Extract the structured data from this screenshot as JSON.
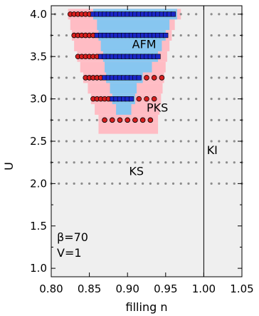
{
  "chart_data": {
    "type": "scatter",
    "xlabel": "filling n",
    "ylabel": "U",
    "xlim": [
      0.8,
      1.05
    ],
    "ylim": [
      0.9,
      4.1
    ],
    "x_ticks": [
      "0.80",
      "0.85",
      "0.90",
      "0.95",
      "1.00",
      "1.05"
    ],
    "y_ticks": [
      "1.0",
      "1.5",
      "2.0",
      "2.5",
      "3.0",
      "3.5",
      "4.0"
    ],
    "x_tick_values": [
      0.8,
      0.85,
      0.9,
      0.95,
      1.0,
      1.05
    ],
    "y_tick_values": [
      1.0,
      1.5,
      2.0,
      2.5,
      3.0,
      3.5,
      4.0
    ],
    "grid": false,
    "vertical_line_x": 1.0,
    "region_labels": [
      {
        "text": "AFM",
        "x": 0.906,
        "y": 3.6
      },
      {
        "text": "PKS",
        "x": 0.925,
        "y": 2.85
      },
      {
        "text": "KS",
        "x": 0.902,
        "y": 2.1
      },
      {
        "text": "KI",
        "x": 1.004,
        "y": 2.35
      }
    ],
    "annotations": [
      "β=70",
      "V=1"
    ],
    "afm_region": {
      "color": "#87c6f0",
      "rows": [
        {
          "u": 4.0,
          "x0": 0.855,
          "x1": 0.965
        },
        {
          "u": 3.875,
          "x0": 0.86,
          "x1": 0.955
        },
        {
          "u": 3.75,
          "x0": 0.862,
          "x1": 0.95
        },
        {
          "u": 3.625,
          "x0": 0.865,
          "x1": 0.945
        },
        {
          "u": 3.5,
          "x0": 0.868,
          "x1": 0.94
        },
        {
          "u": 3.375,
          "x0": 0.87,
          "x1": 0.932
        },
        {
          "u": 3.25,
          "x0": 0.872,
          "x1": 0.92
        },
        {
          "u": 3.125,
          "x0": 0.877,
          "x1": 0.912
        },
        {
          "u": 3.0,
          "x0": 0.88,
          "x1": 0.91
        },
        {
          "u": 2.875,
          "x0": 0.885,
          "x1": 0.905
        }
      ]
    },
    "pks_region": {
      "color": "#ffbcc4",
      "rows": [
        {
          "u": 4.0,
          "x0": 0.822,
          "x1": 0.97
        },
        {
          "u": 3.875,
          "x0": 0.825,
          "x1": 0.962
        },
        {
          "u": 3.75,
          "x0": 0.827,
          "x1": 0.958
        },
        {
          "u": 3.625,
          "x0": 0.83,
          "x1": 0.955
        },
        {
          "u": 3.5,
          "x0": 0.834,
          "x1": 0.952
        },
        {
          "u": 3.375,
          "x0": 0.838,
          "x1": 0.95
        },
        {
          "u": 3.25,
          "x0": 0.842,
          "x1": 0.948
        },
        {
          "u": 3.125,
          "x0": 0.848,
          "x1": 0.946
        },
        {
          "u": 3.0,
          "x0": 0.852,
          "x1": 0.944
        },
        {
          "u": 2.875,
          "x0": 0.857,
          "x1": 0.942
        },
        {
          "u": 2.75,
          "x0": 0.862,
          "x1": 0.94
        },
        {
          "u": 2.65,
          "x0": 0.862,
          "x1": 0.94
        }
      ]
    },
    "series": [
      {
        "marker": "grey-dot",
        "color": "#8c8c8c",
        "rows": [
          {
            "u": 4.0,
            "x": [
              0.805,
              0.815,
              0.97,
              0.98,
              0.99,
              1.01,
              1.02,
              1.03,
              1.04,
              1.05
            ]
          },
          {
            "u": 3.75,
            "x": [
              0.8,
              0.81,
              0.82,
              0.96,
              0.97,
              0.98,
              0.99,
              1.01,
              1.02,
              1.03,
              1.04,
              1.05
            ]
          },
          {
            "u": 3.5,
            "x": [
              0.8,
              0.81,
              0.82,
              0.96,
              0.97,
              0.98,
              0.99,
              1.01,
              1.02,
              1.03,
              1.04,
              1.05
            ]
          },
          {
            "u": 3.25,
            "x": [
              0.8,
              0.81,
              0.82,
              0.83,
              0.96,
              0.97,
              0.98,
              0.99,
              1.01,
              1.02,
              1.03,
              1.04,
              1.05
            ]
          },
          {
            "u": 3.0,
            "x": [
              0.8,
              0.81,
              0.82,
              0.83,
              0.84,
              0.96,
              0.97,
              0.98,
              0.99,
              1.01,
              1.02,
              1.03,
              1.04,
              1.05
            ]
          },
          {
            "u": 2.75,
            "x": [
              0.8,
              0.81,
              0.82,
              0.83,
              0.84,
              0.85,
              0.86,
              0.95,
              0.96,
              0.97,
              0.98,
              0.99,
              1.01,
              1.02,
              1.03,
              1.04,
              1.05
            ]
          },
          {
            "u": 2.5,
            "x": [
              0.8,
              0.81,
              0.82,
              0.83,
              0.84,
              0.85,
              0.86,
              0.87,
              0.88,
              0.89,
              0.9,
              0.91,
              0.92,
              0.93,
              0.94,
              0.95,
              0.96,
              0.97,
              0.98,
              0.99,
              1.01,
              1.02,
              1.03,
              1.04,
              1.05
            ]
          },
          {
            "u": 2.25,
            "x": [
              0.8,
              0.81,
              0.82,
              0.83,
              0.84,
              0.85,
              0.86,
              0.87,
              0.88,
              0.89,
              0.9,
              0.91,
              0.92,
              0.93,
              0.94,
              0.95,
              0.96,
              0.97,
              0.98,
              0.99,
              1.01,
              1.02,
              1.03,
              1.04,
              1.05
            ]
          },
          {
            "u": 2.0,
            "x": [
              0.8,
              0.81,
              0.82,
              0.83,
              0.84,
              0.85,
              0.86,
              0.87,
              0.88,
              0.89,
              0.9,
              0.91,
              0.92,
              0.93,
              0.94,
              0.95,
              0.96,
              0.97,
              0.98,
              0.99,
              1.01,
              1.02,
              1.03,
              1.04,
              1.05
            ]
          }
        ]
      },
      {
        "marker": "red-circle",
        "color": "#d81e1e",
        "rows": [
          {
            "u": 4.0,
            "x": [
              0.825,
              0.83,
              0.835,
              0.84,
              0.845,
              0.85
            ]
          },
          {
            "u": 3.75,
            "x": [
              0.83,
              0.835,
              0.84,
              0.845,
              0.85,
              0.855
            ]
          },
          {
            "u": 3.5,
            "x": [
              0.835,
              0.84,
              0.845,
              0.85,
              0.855,
              0.86
            ]
          },
          {
            "u": 3.25,
            "x": [
              0.845,
              0.85,
              0.855,
              0.86,
              0.865,
              0.925,
              0.935,
              0.945
            ]
          },
          {
            "u": 3.0,
            "x": [
              0.855,
              0.86,
              0.865,
              0.87,
              0.875,
              0.915,
              0.925,
              0.935
            ]
          },
          {
            "u": 2.75,
            "x": [
              0.87,
              0.88,
              0.89,
              0.9,
              0.91,
              0.92,
              0.93
            ]
          }
        ]
      },
      {
        "marker": "blue-square",
        "color": "#1a26c8",
        "rows": [
          {
            "u": 4.0,
            "x": [
              0.855,
              0.86,
              0.865,
              0.87,
              0.875,
              0.88,
              0.885,
              0.89,
              0.895,
              0.9,
              0.905,
              0.91,
              0.915,
              0.92,
              0.925,
              0.93,
              0.935,
              0.94,
              0.945,
              0.95,
              0.955,
              0.96
            ]
          },
          {
            "u": 3.75,
            "x": [
              0.86,
              0.865,
              0.87,
              0.875,
              0.88,
              0.885,
              0.89,
              0.895,
              0.9,
              0.905,
              0.91,
              0.915,
              0.92,
              0.925,
              0.93,
              0.935,
              0.94,
              0.945,
              0.95
            ]
          },
          {
            "u": 3.5,
            "x": [
              0.865,
              0.87,
              0.875,
              0.88,
              0.885,
              0.89,
              0.895,
              0.9,
              0.905,
              0.91,
              0.915,
              0.92,
              0.925,
              0.93,
              0.935,
              0.94
            ]
          },
          {
            "u": 3.25,
            "x": [
              0.87,
              0.875,
              0.88,
              0.885,
              0.89,
              0.895,
              0.9,
              0.905,
              0.91,
              0.915
            ]
          },
          {
            "u": 3.0,
            "x": [
              0.88,
              0.885,
              0.89,
              0.895,
              0.9,
              0.905
            ]
          }
        ]
      }
    ]
  }
}
